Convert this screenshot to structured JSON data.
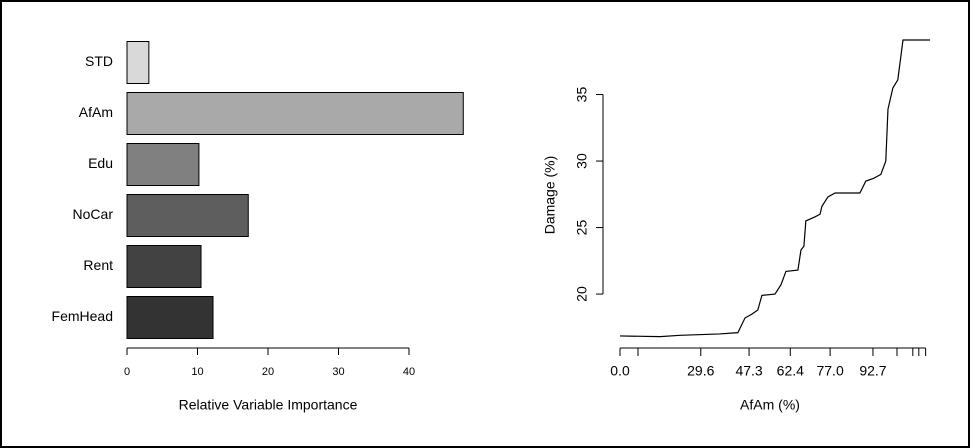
{
  "chart_data": [
    {
      "type": "bar",
      "orientation": "horizontal",
      "x_label": "Relative Variable Importance",
      "categories": [
        "STD",
        "AfAm",
        "Edu",
        "NoCar",
        "Rent",
        "FemHead"
      ],
      "values": [
        3.1,
        47.7,
        10.2,
        17.2,
        10.5,
        12.2
      ],
      "colors": [
        "#d9d9d9",
        "#a9a9a9",
        "#808080",
        "#5e5e5e",
        "#424242",
        "#333333"
      ],
      "xlim": [
        0,
        48
      ],
      "xticks": [
        0,
        10,
        20,
        30,
        40
      ]
    },
    {
      "type": "line",
      "x_label": "AfAm (%)",
      "y_label": "Damage (%)",
      "x": [
        0,
        14.7,
        22,
        36.6,
        43.2,
        45.8,
        48.4,
        50.5,
        52,
        56.8,
        59,
        60.8,
        65.2,
        66.3,
        67.4,
        68.1,
        71.4,
        73.3,
        74,
        76.2,
        78.8,
        87.9,
        90.1,
        93,
        95.6,
        97.4,
        98.2,
        100,
        101.8,
        103.7,
        113.6
      ],
      "values": [
        16.85,
        16.8,
        16.9,
        17.0,
        17.1,
        18.2,
        18.5,
        18.8,
        19.9,
        20.0,
        20.7,
        21.7,
        21.8,
        23.3,
        23.6,
        25.5,
        25.8,
        26.0,
        26.6,
        27.3,
        27.6,
        27.6,
        28.5,
        28.7,
        29.0,
        30.0,
        33.9,
        35.5,
        36.1,
        39.1,
        39.1
      ],
      "color": "#000000",
      "xlim": [
        0,
        113.6
      ],
      "ylim": [
        16.17,
        39.1
      ],
      "xticks": [
        {
          "value": 0,
          "label": "0.0"
        },
        29.6,
        47.3,
        62.4,
        {
          "value": 77,
          "label": "77.0"
        },
        92.7
      ],
      "minor_xticks": [
        6.6,
        101.5,
        107.3,
        109.5,
        112
      ],
      "yticks": [
        20,
        25,
        30,
        35
      ]
    }
  ]
}
